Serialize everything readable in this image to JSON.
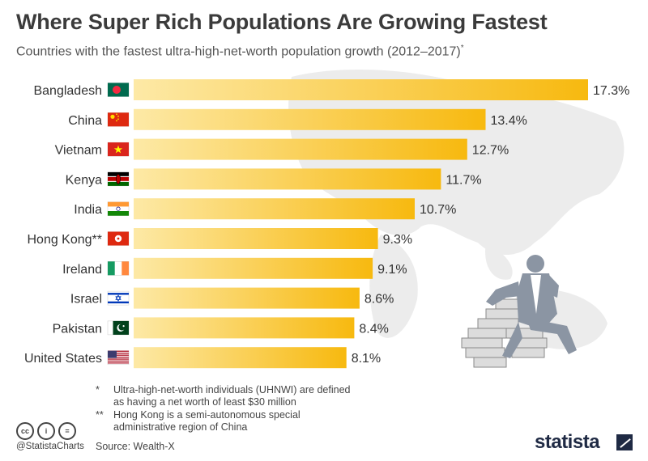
{
  "header": {
    "title": "Where Super Rich Populations Are Growing Fastest",
    "subtitle": "Countries with the fastest ultra-high-net-worth population growth (2012–2017)",
    "subtitle_mark": "*"
  },
  "chart_data": {
    "type": "bar",
    "orientation": "horizontal",
    "categories": [
      "Bangladesh",
      "China",
      "Vietnam",
      "Kenya",
      "India",
      "Hong Kong**",
      "Ireland",
      "Israel",
      "Pakistan",
      "United States"
    ],
    "values": [
      17.3,
      13.4,
      12.7,
      11.7,
      10.7,
      9.3,
      9.1,
      8.6,
      8.4,
      8.1
    ],
    "value_labels": [
      "17.3%",
      "13.4%",
      "12.7%",
      "11.7%",
      "10.7%",
      "9.3%",
      "9.1%",
      "8.6%",
      "8.4%",
      "8.1%"
    ],
    "unit": "%",
    "xlim": [
      0,
      17.3
    ],
    "grid": false,
    "colors": {
      "bar_start": "#fde9a6",
      "bar_end": "#f7b90f"
    },
    "flags": [
      "bangladesh-flag-icon",
      "china-flag-icon",
      "vietnam-flag-icon",
      "kenya-flag-icon",
      "india-flag-icon",
      "hong-kong-flag-icon",
      "ireland-flag-icon",
      "israel-flag-icon",
      "pakistan-flag-icon",
      "united-states-flag-icon"
    ]
  },
  "footnotes": {
    "note1_mark": "*",
    "note1_line1": "Ultra-high-net-worth individuals (UHNWI) are defined",
    "note1_line2": "as having a net worth of least $30 million",
    "note2_mark": "**",
    "note2_line1": "Hong Kong is a semi-autonomous special",
    "note2_line2": "administrative region of China"
  },
  "footer": {
    "handle": "@StatistaCharts",
    "source": "Source: Wealth-X",
    "brand": "statista",
    "license_icons": [
      "cc-icon",
      "attribution-icon",
      "no-derivatives-icon"
    ]
  }
}
